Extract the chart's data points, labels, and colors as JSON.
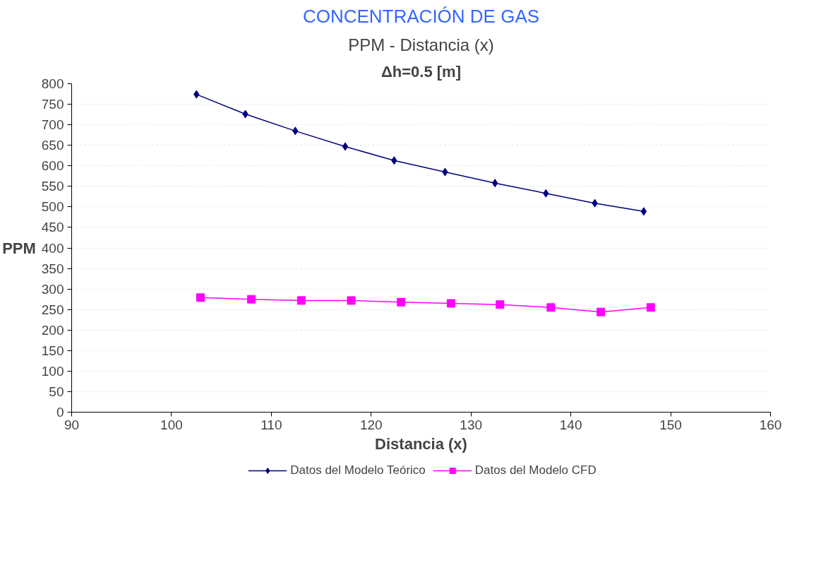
{
  "chart_data": {
    "type": "line",
    "title": "CONCENTRACIÓN DE GAS",
    "subtitle": "PPM - Distancia (x)",
    "annotations": [
      "Δh=0.5 [m]"
    ],
    "xlabel": "Distancia (x)",
    "ylabel": "PPM",
    "xlim": [
      90,
      160
    ],
    "xticks": [
      90,
      100,
      110,
      120,
      130,
      140,
      150,
      160
    ],
    "ylim": [
      0,
      800
    ],
    "yticks": [
      0,
      50,
      100,
      150,
      200,
      250,
      300,
      350,
      400,
      450,
      500,
      550,
      600,
      650,
      700,
      750,
      800
    ],
    "grid": "y",
    "legend": "bottom",
    "series": [
      {
        "name": "Datos del Modelo Teórico",
        "color": "#000080",
        "marker": "diamond",
        "x": [
          102.5,
          107.4,
          112.4,
          117.4,
          122.3,
          127.4,
          132.4,
          137.5,
          142.4,
          147.3
        ],
        "values": [
          774,
          726,
          685,
          647,
          613,
          585,
          558,
          533,
          509,
          489
        ]
      },
      {
        "name": "Datos del Modelo CFD",
        "color": "#ff00ff",
        "marker": "square",
        "x": [
          102.9,
          108.0,
          113.0,
          118.0,
          123.0,
          128.0,
          132.9,
          138.0,
          143.0,
          148.0
        ],
        "values": [
          279,
          275,
          272,
          272,
          268,
          265,
          262,
          255,
          244,
          255
        ]
      }
    ]
  }
}
